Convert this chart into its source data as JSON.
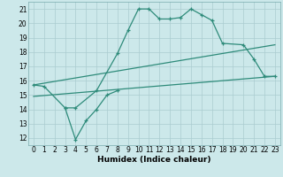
{
  "xlabel": "Humidex (Indice chaleur)",
  "bg_color": "#cce8ea",
  "line_color": "#2e8b7a",
  "grid_color": "#aaccd0",
  "xlim": [
    -0.5,
    23.5
  ],
  "ylim": [
    11.5,
    21.5
  ],
  "xticks": [
    0,
    1,
    2,
    3,
    4,
    5,
    6,
    7,
    8,
    9,
    10,
    11,
    12,
    13,
    14,
    15,
    16,
    17,
    18,
    19,
    20,
    21,
    22,
    23
  ],
  "yticks": [
    12,
    13,
    14,
    15,
    16,
    17,
    18,
    19,
    20,
    21
  ],
  "line1_x": [
    0,
    1,
    3,
    4,
    6,
    8,
    9,
    10,
    11,
    12,
    13,
    14,
    15,
    16,
    17,
    18,
    20,
    21,
    22,
    23
  ],
  "line1_y": [
    15.7,
    15.6,
    14.1,
    14.1,
    15.3,
    17.9,
    19.5,
    21.0,
    21.0,
    20.3,
    20.3,
    20.4,
    21.0,
    20.6,
    20.2,
    18.6,
    18.5,
    17.5,
    16.3,
    16.3
  ],
  "line2_x": [
    3,
    4,
    5,
    6,
    7,
    8
  ],
  "line2_y": [
    14.1,
    11.9,
    13.2,
    14.0,
    15.0,
    15.3
  ],
  "line3_x": [
    0,
    23
  ],
  "line3_y": [
    14.9,
    16.3
  ],
  "line4_x": [
    0,
    23
  ],
  "line4_y": [
    15.7,
    18.5
  ]
}
